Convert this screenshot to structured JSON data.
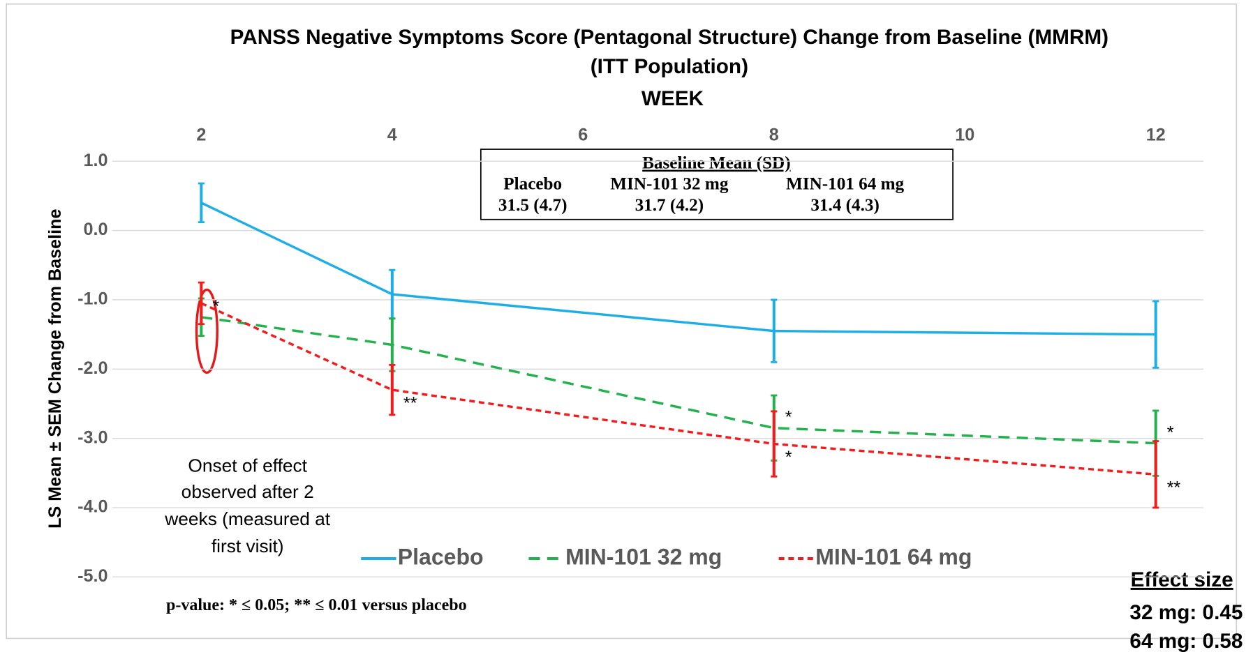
{
  "chart_data": {
    "type": "line",
    "title": "PANSS Negative Symptoms Score (Pentagonal Structure) Change from Baseline (MMRM)",
    "subtitle": "(ITT Population)",
    "x_label": "WEEK",
    "y_label": "LS Mean ± SEM Change from Baseline",
    "x": [
      2,
      4,
      8,
      12
    ],
    "xlim": [
      1,
      12.5
    ],
    "xticks": [
      2,
      4,
      6,
      8,
      10,
      12
    ],
    "ylim": [
      -5,
      1
    ],
    "yticks": [
      {
        "value": -5,
        "label": "-5.0"
      },
      {
        "value": -4,
        "label": "-4.0"
      },
      {
        "value": -3,
        "label": "-3.0"
      },
      {
        "value": -2,
        "label": "-2.0"
      },
      {
        "value": -1,
        "label": "-1.0"
      },
      {
        "value": 0,
        "label": "0.0"
      },
      {
        "value": 1,
        "label": "1.0"
      }
    ],
    "grid": true,
    "series": [
      {
        "name": "Placebo",
        "color": "#1eaee6",
        "line_style": "solid",
        "values": [
          0.4,
          -0.92,
          -1.45,
          -1.5
        ],
        "errors": [
          0.28,
          0.35,
          0.45,
          0.48
        ],
        "significance": [
          null,
          null,
          null,
          null
        ]
      },
      {
        "name": "MIN-101 32 mg",
        "color": "#22b14c",
        "line_style": "dashed",
        "values": [
          -1.25,
          -1.65,
          -2.85,
          -3.07
        ],
        "errors": [
          0.27,
          0.38,
          0.47,
          0.47
        ],
        "significance": [
          "*",
          null,
          "*",
          "*"
        ]
      },
      {
        "name": "MIN-101 64 mg",
        "color": "#f21c1c",
        "line_style": "dotted",
        "values": [
          -1.05,
          -2.3,
          -3.08,
          -3.52
        ],
        "errors": [
          0.3,
          0.36,
          0.47,
          0.48
        ],
        "significance": [
          null,
          "**",
          "*",
          "**"
        ]
      }
    ],
    "baseline_table": {
      "title": "Baseline Mean (SD)",
      "columns": [
        "Placebo",
        "MIN-101 32 mg",
        "MIN-101 64 mg"
      ],
      "values": [
        "31.5 (4.7)",
        "31.7 (4.2)",
        "31.4 (4.3)"
      ]
    },
    "annotation": [
      "Onset of effect",
      "observed after 2",
      "weeks (measured at",
      "first visit)"
    ],
    "footnote": "p-value: * ≤ 0.05;  ** ≤ 0.01 versus placebo",
    "effect_size": {
      "title": "Effect size",
      "lines": [
        "32 mg: 0.45",
        "64 mg: 0.58"
      ]
    }
  }
}
